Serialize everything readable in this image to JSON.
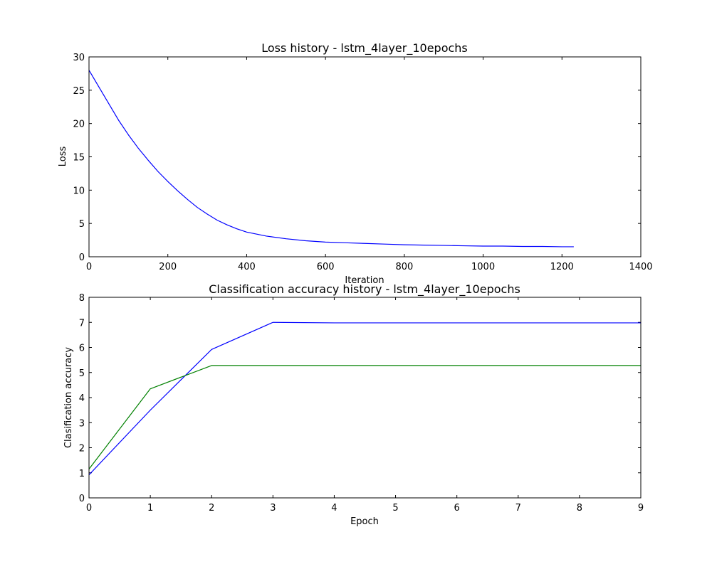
{
  "chart_data": [
    {
      "type": "line",
      "title": "Loss history - lstm_4layer_10epochs",
      "xlabel": "Iteration",
      "ylabel": "Loss",
      "xlim": [
        0,
        1400
      ],
      "ylim": [
        0,
        30
      ],
      "xticks": [
        "0",
        "200",
        "400",
        "600",
        "800",
        "1000",
        "1200",
        "1400"
      ],
      "yticks": [
        "0",
        "5",
        "10",
        "15",
        "20",
        "25",
        "30"
      ],
      "grid": false,
      "series": [
        {
          "color": "#0000ff",
          "x": [
            0,
            25,
            50,
            75,
            100,
            125,
            150,
            175,
            200,
            225,
            250,
            275,
            300,
            325,
            350,
            375,
            400,
            450,
            500,
            550,
            600,
            650,
            700,
            750,
            800,
            850,
            900,
            950,
            1000,
            1050,
            1100,
            1150,
            1200,
            1230
          ],
          "y": [
            28.0,
            25.5,
            23.0,
            20.5,
            18.3,
            16.3,
            14.5,
            12.8,
            11.3,
            9.9,
            8.6,
            7.4,
            6.4,
            5.5,
            4.8,
            4.2,
            3.7,
            3.1,
            2.7,
            2.4,
            2.2,
            2.1,
            2.0,
            1.9,
            1.8,
            1.75,
            1.7,
            1.65,
            1.6,
            1.6,
            1.55,
            1.55,
            1.5,
            1.5
          ]
        }
      ]
    },
    {
      "type": "line",
      "title": "Classification accuracy history - lstm_4layer_10epochs",
      "xlabel": "Epoch",
      "ylabel": "Clasification accuracy",
      "xlim": [
        0,
        9
      ],
      "ylim": [
        0,
        8
      ],
      "xticks": [
        "0",
        "1",
        "2",
        "3",
        "4",
        "5",
        "6",
        "7",
        "8",
        "9"
      ],
      "yticks": [
        "0",
        "1",
        "2",
        "3",
        "4",
        "5",
        "6",
        "7",
        "8"
      ],
      "grid": false,
      "series": [
        {
          "color": "#0000ff",
          "x": [
            0,
            1,
            2,
            3,
            4,
            5,
            6,
            7,
            8,
            9
          ],
          "y": [
            0.92,
            3.5,
            5.92,
            7.0,
            6.98,
            6.98,
            6.98,
            6.98,
            6.98,
            6.98
          ]
        },
        {
          "color": "#008000",
          "x": [
            0,
            1,
            2,
            3,
            4,
            5,
            6,
            7,
            8,
            9
          ],
          "y": [
            1.15,
            4.35,
            5.28,
            5.28,
            5.28,
            5.28,
            5.28,
            5.28,
            5.28,
            5.28
          ]
        }
      ]
    }
  ]
}
